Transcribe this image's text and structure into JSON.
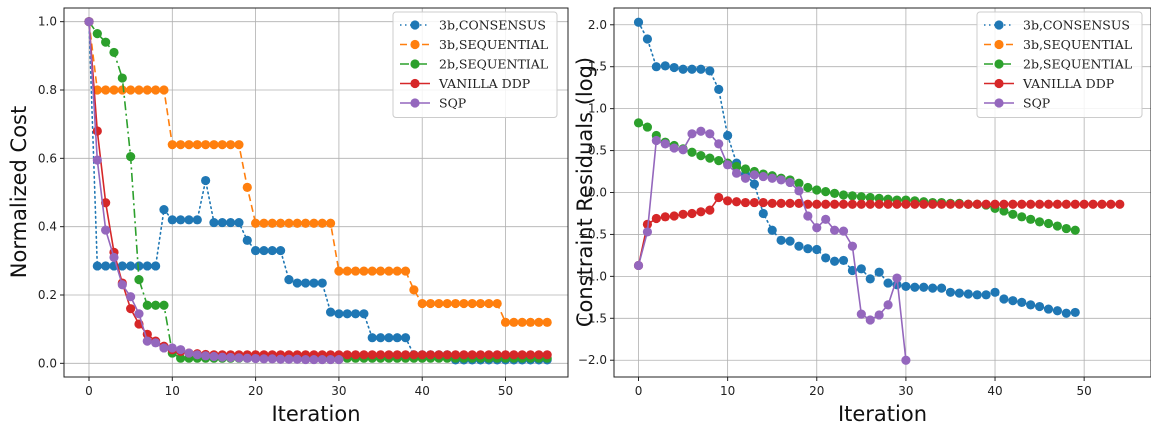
{
  "chart_data": [
    {
      "type": "line",
      "title": "",
      "xlabel": "Iteration",
      "ylabel": "Normalized Cost",
      "xlim": [
        -3,
        57.5
      ],
      "ylim": [
        -0.04,
        1.04
      ],
      "grid": true,
      "legend_position": "top-right",
      "xticks": [
        0,
        10,
        20,
        30,
        40,
        50
      ],
      "yticks": [
        0.0,
        0.2,
        0.4,
        0.6,
        0.8,
        1.0
      ],
      "ytick_labels": [
        "0.0",
        "0.2",
        "0.4",
        "0.6",
        "0.8",
        "1.0"
      ],
      "series": [
        {
          "name": "3b,CONSENSUS",
          "color": "#1f77b4",
          "linestyle": "dotted",
          "x": [
            0,
            1,
            2,
            3,
            4,
            5,
            6,
            7,
            8,
            9,
            10,
            11,
            12,
            13,
            14,
            15,
            16,
            17,
            18,
            19,
            20,
            21,
            22,
            23,
            24,
            25,
            26,
            27,
            28,
            29,
            30,
            31,
            32,
            33,
            34,
            35,
            36,
            37,
            38,
            39,
            40,
            41,
            42,
            43,
            44,
            45,
            46,
            47,
            48,
            49,
            50,
            51,
            52,
            53,
            54,
            55
          ],
          "y": [
            1.0,
            0.285,
            0.285,
            0.285,
            0.285,
            0.285,
            0.285,
            0.285,
            0.285,
            0.45,
            0.42,
            0.42,
            0.42,
            0.42,
            0.535,
            0.412,
            0.412,
            0.412,
            0.412,
            0.36,
            0.33,
            0.33,
            0.33,
            0.33,
            0.245,
            0.235,
            0.235,
            0.235,
            0.235,
            0.15,
            0.145,
            0.145,
            0.145,
            0.145,
            0.075,
            0.075,
            0.075,
            0.075,
            0.075,
            0.025,
            0.025,
            0.025,
            0.025,
            0.025,
            0.01,
            0.01,
            0.01,
            0.01,
            0.01,
            0.01,
            0.01,
            0.01,
            0.01,
            0.01,
            0.01,
            0.01
          ]
        },
        {
          "name": "3b,SEQUENTIAL",
          "color": "#ff7f0e",
          "linestyle": "dashed",
          "x": [
            0,
            1,
            2,
            3,
            4,
            5,
            6,
            7,
            8,
            9,
            10,
            11,
            12,
            13,
            14,
            15,
            16,
            17,
            18,
            19,
            20,
            21,
            22,
            23,
            24,
            25,
            26,
            27,
            28,
            29,
            30,
            31,
            32,
            33,
            34,
            35,
            36,
            37,
            38,
            39,
            40,
            41,
            42,
            43,
            44,
            45,
            46,
            47,
            48,
            49,
            50,
            51,
            52,
            53,
            54,
            55
          ],
          "y": [
            1.0,
            0.8,
            0.8,
            0.8,
            0.8,
            0.8,
            0.8,
            0.8,
            0.8,
            0.8,
            0.64,
            0.64,
            0.64,
            0.64,
            0.64,
            0.64,
            0.64,
            0.64,
            0.64,
            0.515,
            0.41,
            0.41,
            0.41,
            0.41,
            0.41,
            0.41,
            0.41,
            0.41,
            0.41,
            0.41,
            0.27,
            0.27,
            0.27,
            0.27,
            0.27,
            0.27,
            0.27,
            0.27,
            0.27,
            0.215,
            0.175,
            0.175,
            0.175,
            0.175,
            0.175,
            0.175,
            0.175,
            0.175,
            0.175,
            0.175,
            0.12,
            0.12,
            0.12,
            0.12,
            0.12,
            0.12
          ]
        },
        {
          "name": "2b,SEQUENTIAL",
          "color": "#2ca02c",
          "linestyle": "dashdot",
          "x": [
            0,
            1,
            2,
            3,
            4,
            5,
            6,
            7,
            8,
            9,
            10,
            11,
            12,
            13,
            14,
            15,
            16,
            17,
            18,
            19,
            20,
            21,
            22,
            23,
            24,
            25,
            26,
            27,
            28,
            29,
            30,
            31,
            32,
            33,
            34,
            35,
            36,
            37,
            38,
            39,
            40,
            41,
            42,
            43,
            44,
            45,
            46,
            47,
            48,
            49,
            50,
            51,
            52,
            53,
            54,
            55
          ],
          "y": [
            1.0,
            0.965,
            0.94,
            0.91,
            0.835,
            0.605,
            0.245,
            0.17,
            0.17,
            0.17,
            0.03,
            0.015,
            0.015,
            0.015,
            0.015,
            0.015,
            0.015,
            0.015,
            0.015,
            0.015,
            0.015,
            0.015,
            0.015,
            0.015,
            0.015,
            0.015,
            0.015,
            0.015,
            0.015,
            0.015,
            0.015,
            0.015,
            0.015,
            0.015,
            0.015,
            0.015,
            0.015,
            0.015,
            0.015,
            0.015,
            0.015,
            0.015,
            0.015,
            0.015,
            0.015,
            0.015,
            0.015,
            0.015,
            0.015,
            0.015,
            0.015,
            0.015,
            0.015,
            0.015,
            0.015,
            0.015
          ]
        },
        {
          "name": "VANILLA DDP",
          "color": "#d62728",
          "linestyle": "solid",
          "x": [
            0,
            1,
            2,
            3,
            4,
            5,
            6,
            7,
            8,
            9,
            10,
            11,
            12,
            13,
            14,
            15,
            16,
            17,
            18,
            19,
            20,
            21,
            22,
            23,
            24,
            25,
            26,
            27,
            28,
            29,
            30,
            31,
            32,
            33,
            34,
            35,
            36,
            37,
            38,
            39,
            40,
            41,
            42,
            43,
            44,
            45,
            46,
            47,
            48,
            49,
            50,
            51,
            52,
            53,
            54,
            55
          ],
          "y": [
            1.0,
            0.68,
            0.47,
            0.325,
            0.235,
            0.16,
            0.115,
            0.085,
            0.065,
            0.05,
            0.04,
            0.035,
            0.03,
            0.028,
            0.026,
            0.025,
            0.025,
            0.025,
            0.025,
            0.025,
            0.025,
            0.025,
            0.025,
            0.025,
            0.025,
            0.025,
            0.025,
            0.025,
            0.025,
            0.025,
            0.025,
            0.025,
            0.025,
            0.025,
            0.025,
            0.025,
            0.025,
            0.025,
            0.025,
            0.025,
            0.025,
            0.025,
            0.025,
            0.025,
            0.025,
            0.025,
            0.025,
            0.025,
            0.025,
            0.025,
            0.025,
            0.025,
            0.025,
            0.025,
            0.025,
            0.025
          ]
        },
        {
          "name": "SQP",
          "color": "#9467bd",
          "linestyle": "solid",
          "x": [
            0,
            1,
            2,
            3,
            4,
            5,
            6,
            7,
            8,
            9,
            10,
            11,
            12,
            13,
            14,
            15,
            16,
            17,
            18,
            19,
            20,
            21,
            22,
            23,
            24,
            25,
            26,
            27,
            28,
            29,
            30
          ],
          "y": [
            1.0,
            0.595,
            0.39,
            0.31,
            0.23,
            0.195,
            0.145,
            0.065,
            0.06,
            0.045,
            0.045,
            0.04,
            0.03,
            0.025,
            0.022,
            0.02,
            0.018,
            0.017,
            0.016,
            0.015,
            0.014,
            0.013,
            0.013,
            0.012,
            0.012,
            0.012,
            0.011,
            0.011,
            0.011,
            0.011,
            0.011
          ]
        }
      ]
    },
    {
      "type": "line",
      "title": "",
      "xlabel": "Iteration",
      "ylabel": "Constraint Residuals (log)",
      "xlim": [
        -2.75,
        57.5
      ],
      "ylim": [
        -2.2,
        2.2
      ],
      "grid": true,
      "legend_position": "top-right",
      "xticks": [
        0,
        10,
        20,
        30,
        40,
        50
      ],
      "yticks": [
        -2.0,
        -1.5,
        -1.0,
        -0.5,
        0.0,
        0.5,
        1.0,
        1.5,
        2.0
      ],
      "ytick_labels": [
        "−2.0",
        "−1.5",
        "−1.0",
        "−0.5",
        "0.0",
        "0.5",
        "1.0",
        "1.5",
        "2.0"
      ],
      "series": [
        {
          "name": "3b,CONSENSUS",
          "color": "#1f77b4",
          "linestyle": "dotted",
          "x": [
            0,
            1,
            2,
            3,
            4,
            5,
            6,
            7,
            8,
            9,
            10,
            11,
            12,
            13,
            14,
            15,
            16,
            17,
            18,
            19,
            20,
            21,
            22,
            23,
            24,
            25,
            26,
            27,
            28,
            29,
            30,
            31,
            32,
            33,
            34,
            35,
            36,
            37,
            38,
            39,
            40,
            41,
            42,
            43,
            44,
            45,
            46,
            47,
            48,
            49
          ],
          "y": [
            2.03,
            1.83,
            1.5,
            1.51,
            1.49,
            1.47,
            1.47,
            1.47,
            1.45,
            1.23,
            0.68,
            0.35,
            0.22,
            0.1,
            -0.25,
            -0.45,
            -0.57,
            -0.58,
            -0.64,
            -0.67,
            -0.68,
            -0.78,
            -0.82,
            -0.81,
            -0.93,
            -0.91,
            -1.03,
            -0.95,
            -1.08,
            -1.1,
            -1.12,
            -1.13,
            -1.13,
            -1.14,
            -1.14,
            -1.19,
            -1.2,
            -1.21,
            -1.22,
            -1.22,
            -1.19,
            -1.27,
            -1.29,
            -1.31,
            -1.34,
            -1.36,
            -1.39,
            -1.41,
            -1.44,
            -1.43
          ]
        },
        {
          "name": "3b,SEQUENTIAL",
          "color": "#ff7f0e",
          "linestyle": "dashed",
          "x": [],
          "y": []
        },
        {
          "name": "2b,SEQUENTIAL",
          "color": "#2ca02c",
          "linestyle": "dashdot",
          "x": [
            0,
            1,
            2,
            3,
            4,
            5,
            6,
            7,
            8,
            9,
            10,
            11,
            12,
            13,
            14,
            15,
            16,
            17,
            18,
            19,
            20,
            21,
            22,
            23,
            24,
            25,
            26,
            27,
            28,
            29,
            30,
            31,
            32,
            33,
            34,
            35,
            36,
            37,
            38,
            39,
            40,
            41,
            42,
            43,
            44,
            45,
            46,
            47,
            48,
            49
          ],
          "y": [
            0.83,
            0.78,
            0.68,
            0.6,
            0.56,
            0.52,
            0.48,
            0.44,
            0.41,
            0.38,
            0.35,
            0.31,
            0.28,
            0.25,
            0.22,
            0.2,
            0.17,
            0.15,
            0.11,
            0.06,
            0.03,
            0.01,
            -0.01,
            -0.03,
            -0.04,
            -0.05,
            -0.06,
            -0.07,
            -0.08,
            -0.09,
            -0.09,
            -0.1,
            -0.11,
            -0.12,
            -0.12,
            -0.13,
            -0.13,
            -0.14,
            -0.14,
            -0.15,
            -0.19,
            -0.22,
            -0.26,
            -0.29,
            -0.32,
            -0.35,
            -0.37,
            -0.4,
            -0.43,
            -0.45
          ]
        },
        {
          "name": "VANILLA DDP",
          "color": "#d62728",
          "linestyle": "solid",
          "x": [
            0,
            1,
            2,
            3,
            4,
            5,
            6,
            7,
            8,
            9,
            10,
            11,
            12,
            13,
            14,
            15,
            16,
            17,
            18,
            19,
            20,
            21,
            22,
            23,
            24,
            25,
            26,
            27,
            28,
            29,
            30,
            31,
            32,
            33,
            34,
            35,
            36,
            37,
            38,
            39,
            40,
            41,
            42,
            43,
            44,
            45,
            46,
            47,
            48,
            49,
            50,
            51,
            52,
            53,
            54
          ],
          "y": [
            -0.87,
            -0.38,
            -0.31,
            -0.29,
            -0.28,
            -0.26,
            -0.25,
            -0.23,
            -0.21,
            -0.06,
            -0.1,
            -0.11,
            -0.12,
            -0.12,
            -0.12,
            -0.13,
            -0.13,
            -0.13,
            -0.13,
            -0.14,
            -0.14,
            -0.14,
            -0.14,
            -0.14,
            -0.14,
            -0.14,
            -0.14,
            -0.14,
            -0.14,
            -0.14,
            -0.14,
            -0.14,
            -0.14,
            -0.14,
            -0.14,
            -0.14,
            -0.14,
            -0.14,
            -0.14,
            -0.14,
            -0.14,
            -0.14,
            -0.14,
            -0.14,
            -0.14,
            -0.14,
            -0.14,
            -0.14,
            -0.14,
            -0.14,
            -0.14,
            -0.14,
            -0.14,
            -0.14,
            -0.14
          ]
        },
        {
          "name": "SQP",
          "color": "#9467bd",
          "linestyle": "solid",
          "x": [
            0,
            1,
            2,
            3,
            4,
            5,
            6,
            7,
            8,
            9,
            10,
            11,
            12,
            13,
            14,
            15,
            16,
            17,
            18,
            19,
            20,
            21,
            22,
            23,
            24,
            25,
            26,
            27,
            28,
            29,
            30
          ],
          "y": [
            -0.87,
            -0.47,
            0.62,
            0.58,
            0.53,
            0.51,
            0.7,
            0.73,
            0.7,
            0.58,
            0.33,
            0.23,
            0.17,
            0.21,
            0.19,
            0.17,
            0.15,
            0.12,
            0.02,
            -0.28,
            -0.42,
            -0.32,
            -0.45,
            -0.46,
            -0.64,
            -1.45,
            -1.52,
            -1.46,
            -1.34,
            -1.02,
            -2.0
          ]
        }
      ]
    }
  ]
}
